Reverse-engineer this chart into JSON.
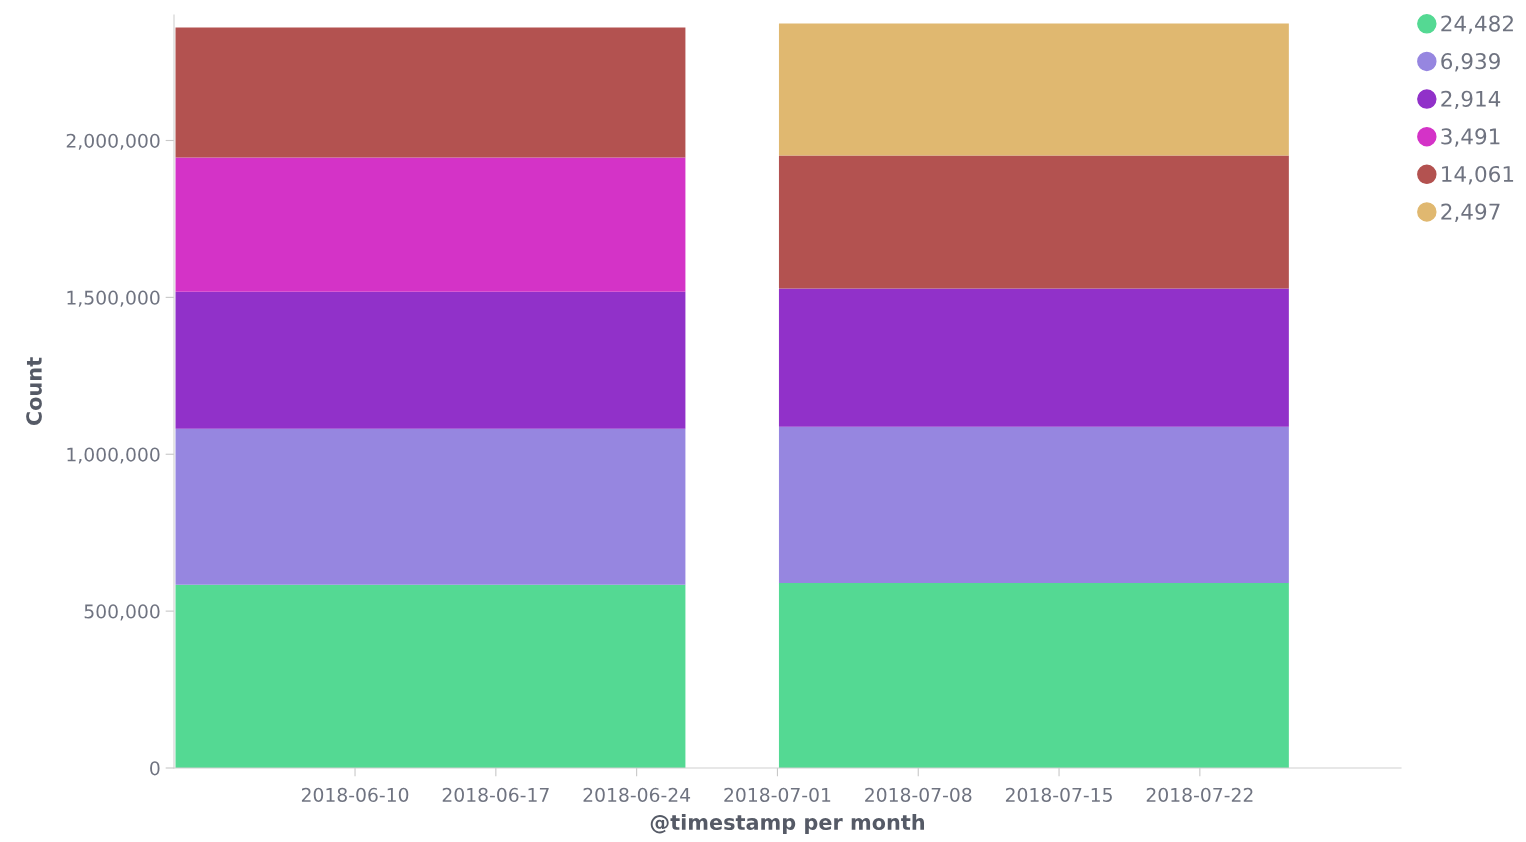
{
  "chart_data": {
    "type": "bar",
    "stacked": true,
    "x": [
      "2018-06-13T18:00",
      "2018-07-13T18:00"
    ],
    "series": [
      {
        "name": "24,482",
        "color": "#54d993",
        "values": [
          584000,
          590000
        ]
      },
      {
        "name": "6,939",
        "color": "#9686e0",
        "values": [
          497000,
          498000
        ]
      },
      {
        "name": "2,914",
        "color": "#9131c9",
        "values": [
          437000,
          440000
        ]
      },
      {
        "name": "3,491",
        "color": "#d433c7",
        "values": [
          428000,
          null
        ]
      },
      {
        "name": "14,061",
        "color": "#b35250",
        "values": [
          414000,
          424000
        ]
      },
      {
        "name": "2,497",
        "color": "#e0b870",
        "values": [
          null,
          421000
        ]
      }
    ],
    "xlabel": "@timestamp per month",
    "ylabel": "Count",
    "xlim": [
      "2018-06-01",
      "2018-08-01"
    ],
    "xticks": [
      "2018-06-10",
      "2018-06-17",
      "2018-06-24",
      "2018-07-01",
      "2018-07-08",
      "2018-07-15",
      "2018-07-22"
    ],
    "ylim": [
      0,
      2400000
    ],
    "yticks": [
      0,
      {
        "value": 500000,
        "label": "500,000"
      },
      {
        "value": 1000000,
        "label": "1,000,000"
      },
      {
        "value": 1500000,
        "label": "1,500,000"
      },
      {
        "value": 2000000,
        "label": "2,000,000"
      }
    ],
    "legend": "top right",
    "grid": false
  }
}
